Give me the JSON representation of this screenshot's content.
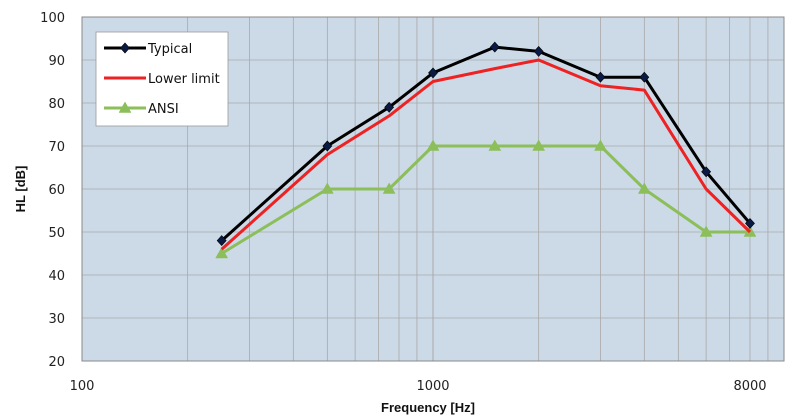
{
  "chart_data": {
    "type": "line",
    "title": "",
    "xlabel": "Frequency [Hz]",
    "ylabel": "HL [dB]",
    "x_scale": "log",
    "xlim": [
      100,
      10000
    ],
    "ylim": [
      20,
      100
    ],
    "x_ticks": [
      100,
      1000,
      8000
    ],
    "x_tick_labels": [
      "100",
      "1000",
      "8000"
    ],
    "y_ticks": [
      20,
      30,
      40,
      50,
      60,
      70,
      80,
      90,
      100
    ],
    "grid": true,
    "legend_position": "top-left",
    "colors": {
      "plot_bg": "#ccdae8",
      "grid": "#a8a8a8"
    },
    "series": [
      {
        "name": "Typical",
        "color": "#000000",
        "marker": "diamond",
        "x": [
          250,
          500,
          750,
          1000,
          1500,
          2000,
          3000,
          4000,
          6000,
          8000
        ],
        "y": [
          48,
          70,
          79,
          87,
          93,
          92,
          86,
          86,
          64,
          52
        ]
      },
      {
        "name": "Lower limit",
        "color": "#ee2222",
        "marker": "none",
        "x": [
          250,
          500,
          750,
          1000,
          1500,
          2000,
          3000,
          4000,
          6000,
          8000
        ],
        "y": [
          46,
          68,
          77,
          85,
          88,
          90,
          84,
          83,
          60,
          50
        ]
      },
      {
        "name": "ANSI",
        "color": "#8cbe5a",
        "marker": "triangle",
        "x": [
          250,
          500,
          750,
          1000,
          1500,
          2000,
          3000,
          4000,
          6000,
          8000
        ],
        "y": [
          45,
          60,
          60,
          70,
          70,
          70,
          70,
          60,
          50,
          50
        ]
      }
    ]
  }
}
